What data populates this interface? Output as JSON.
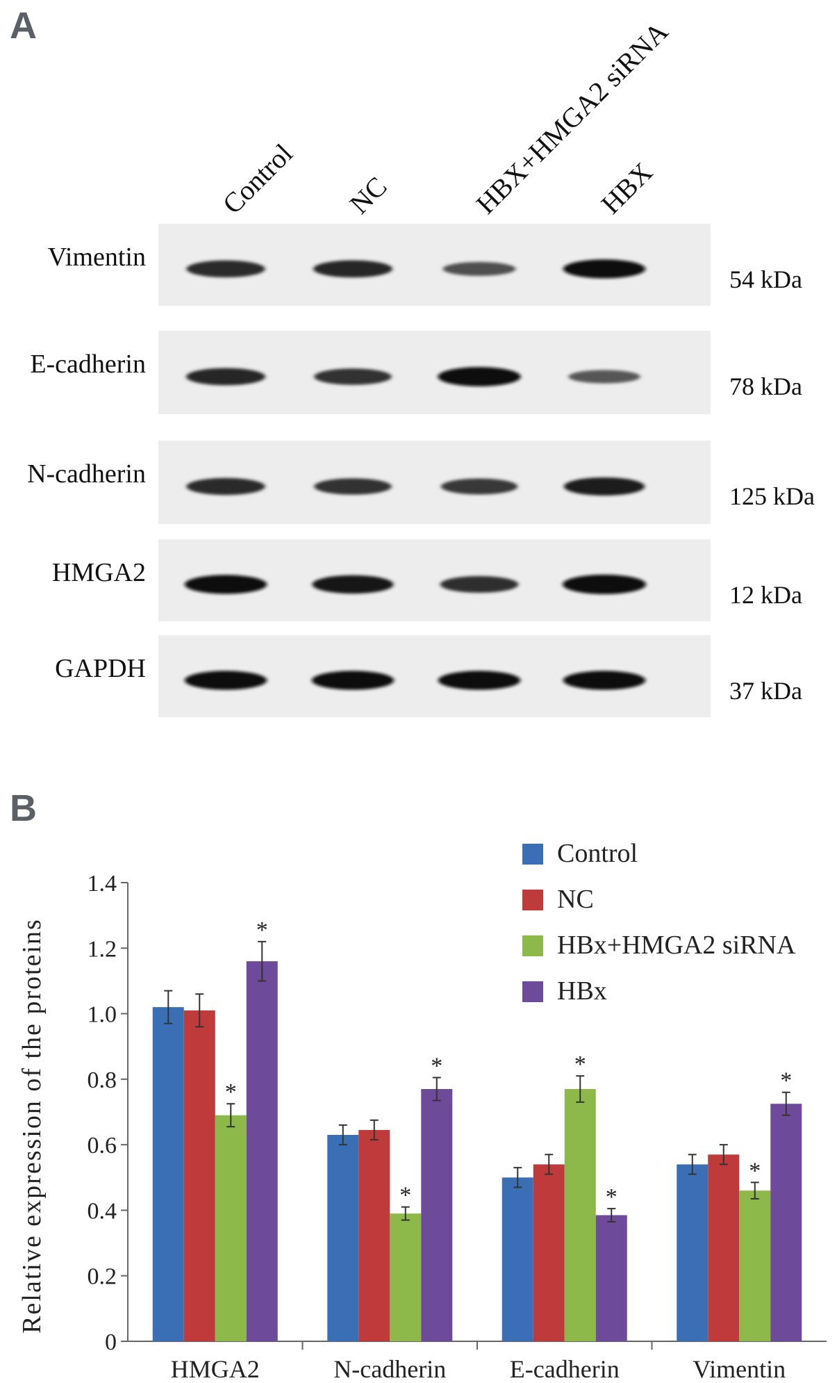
{
  "panel_a": {
    "label": "A",
    "lanes": [
      "Control",
      "NC",
      "HBX+HMGA2 siRNA",
      "HBX"
    ],
    "blots": [
      {
        "protein": "Vimentin",
        "size": "54 kDa",
        "intensity": [
          0.78,
          0.8,
          0.5,
          0.95
        ]
      },
      {
        "protein": "E-cadherin",
        "size": "78 kDa",
        "intensity": [
          0.8,
          0.72,
          0.98,
          0.45
        ]
      },
      {
        "protein": "N-cadherin",
        "size": "125 kDa",
        "intensity": [
          0.78,
          0.72,
          0.68,
          0.88
        ]
      },
      {
        "protein": "HMGA2",
        "size": "12 kDa",
        "intensity": [
          0.95,
          0.9,
          0.75,
          1.0
        ]
      },
      {
        "protein": "GAPDH",
        "size": "37 kDa",
        "intensity": [
          0.95,
          0.95,
          0.95,
          0.95
        ]
      }
    ]
  },
  "panel_b": {
    "label": "B"
  },
  "chart_data": {
    "type": "bar",
    "title": "",
    "xlabel": "",
    "ylabel": "Relative expression of the proteins",
    "ylim": [
      0,
      1.4
    ],
    "yticks": [
      "0",
      "0.2",
      "0.4",
      "0.6",
      "0.8",
      "1.0",
      "1.2",
      "1.4"
    ],
    "categories": [
      "HMGA2",
      "N-cadherin",
      "E-cadherin",
      "Vimentin"
    ],
    "legend_position": "top-right",
    "significance_mark": "*",
    "series": [
      {
        "name": "Control",
        "color": "#3a6fb5",
        "values": [
          1.02,
          0.63,
          0.5,
          0.54
        ],
        "errors": [
          0.05,
          0.03,
          0.03,
          0.03
        ],
        "significant": [
          false,
          false,
          false,
          false
        ]
      },
      {
        "name": "NC",
        "color": "#bf3a3a",
        "values": [
          1.01,
          0.645,
          0.54,
          0.57
        ],
        "errors": [
          0.05,
          0.03,
          0.03,
          0.03
        ],
        "significant": [
          false,
          false,
          false,
          false
        ]
      },
      {
        "name": "HBx+HMGA2 siRNA",
        "color": "#8db94a",
        "values": [
          0.69,
          0.39,
          0.77,
          0.46
        ],
        "errors": [
          0.035,
          0.02,
          0.04,
          0.025
        ],
        "significant": [
          true,
          true,
          true,
          true
        ]
      },
      {
        "name": "HBx",
        "color": "#6e4a9a",
        "values": [
          1.16,
          0.77,
          0.385,
          0.725
        ],
        "errors": [
          0.06,
          0.035,
          0.02,
          0.035
        ],
        "significant": [
          true,
          true,
          true,
          true
        ]
      }
    ]
  }
}
